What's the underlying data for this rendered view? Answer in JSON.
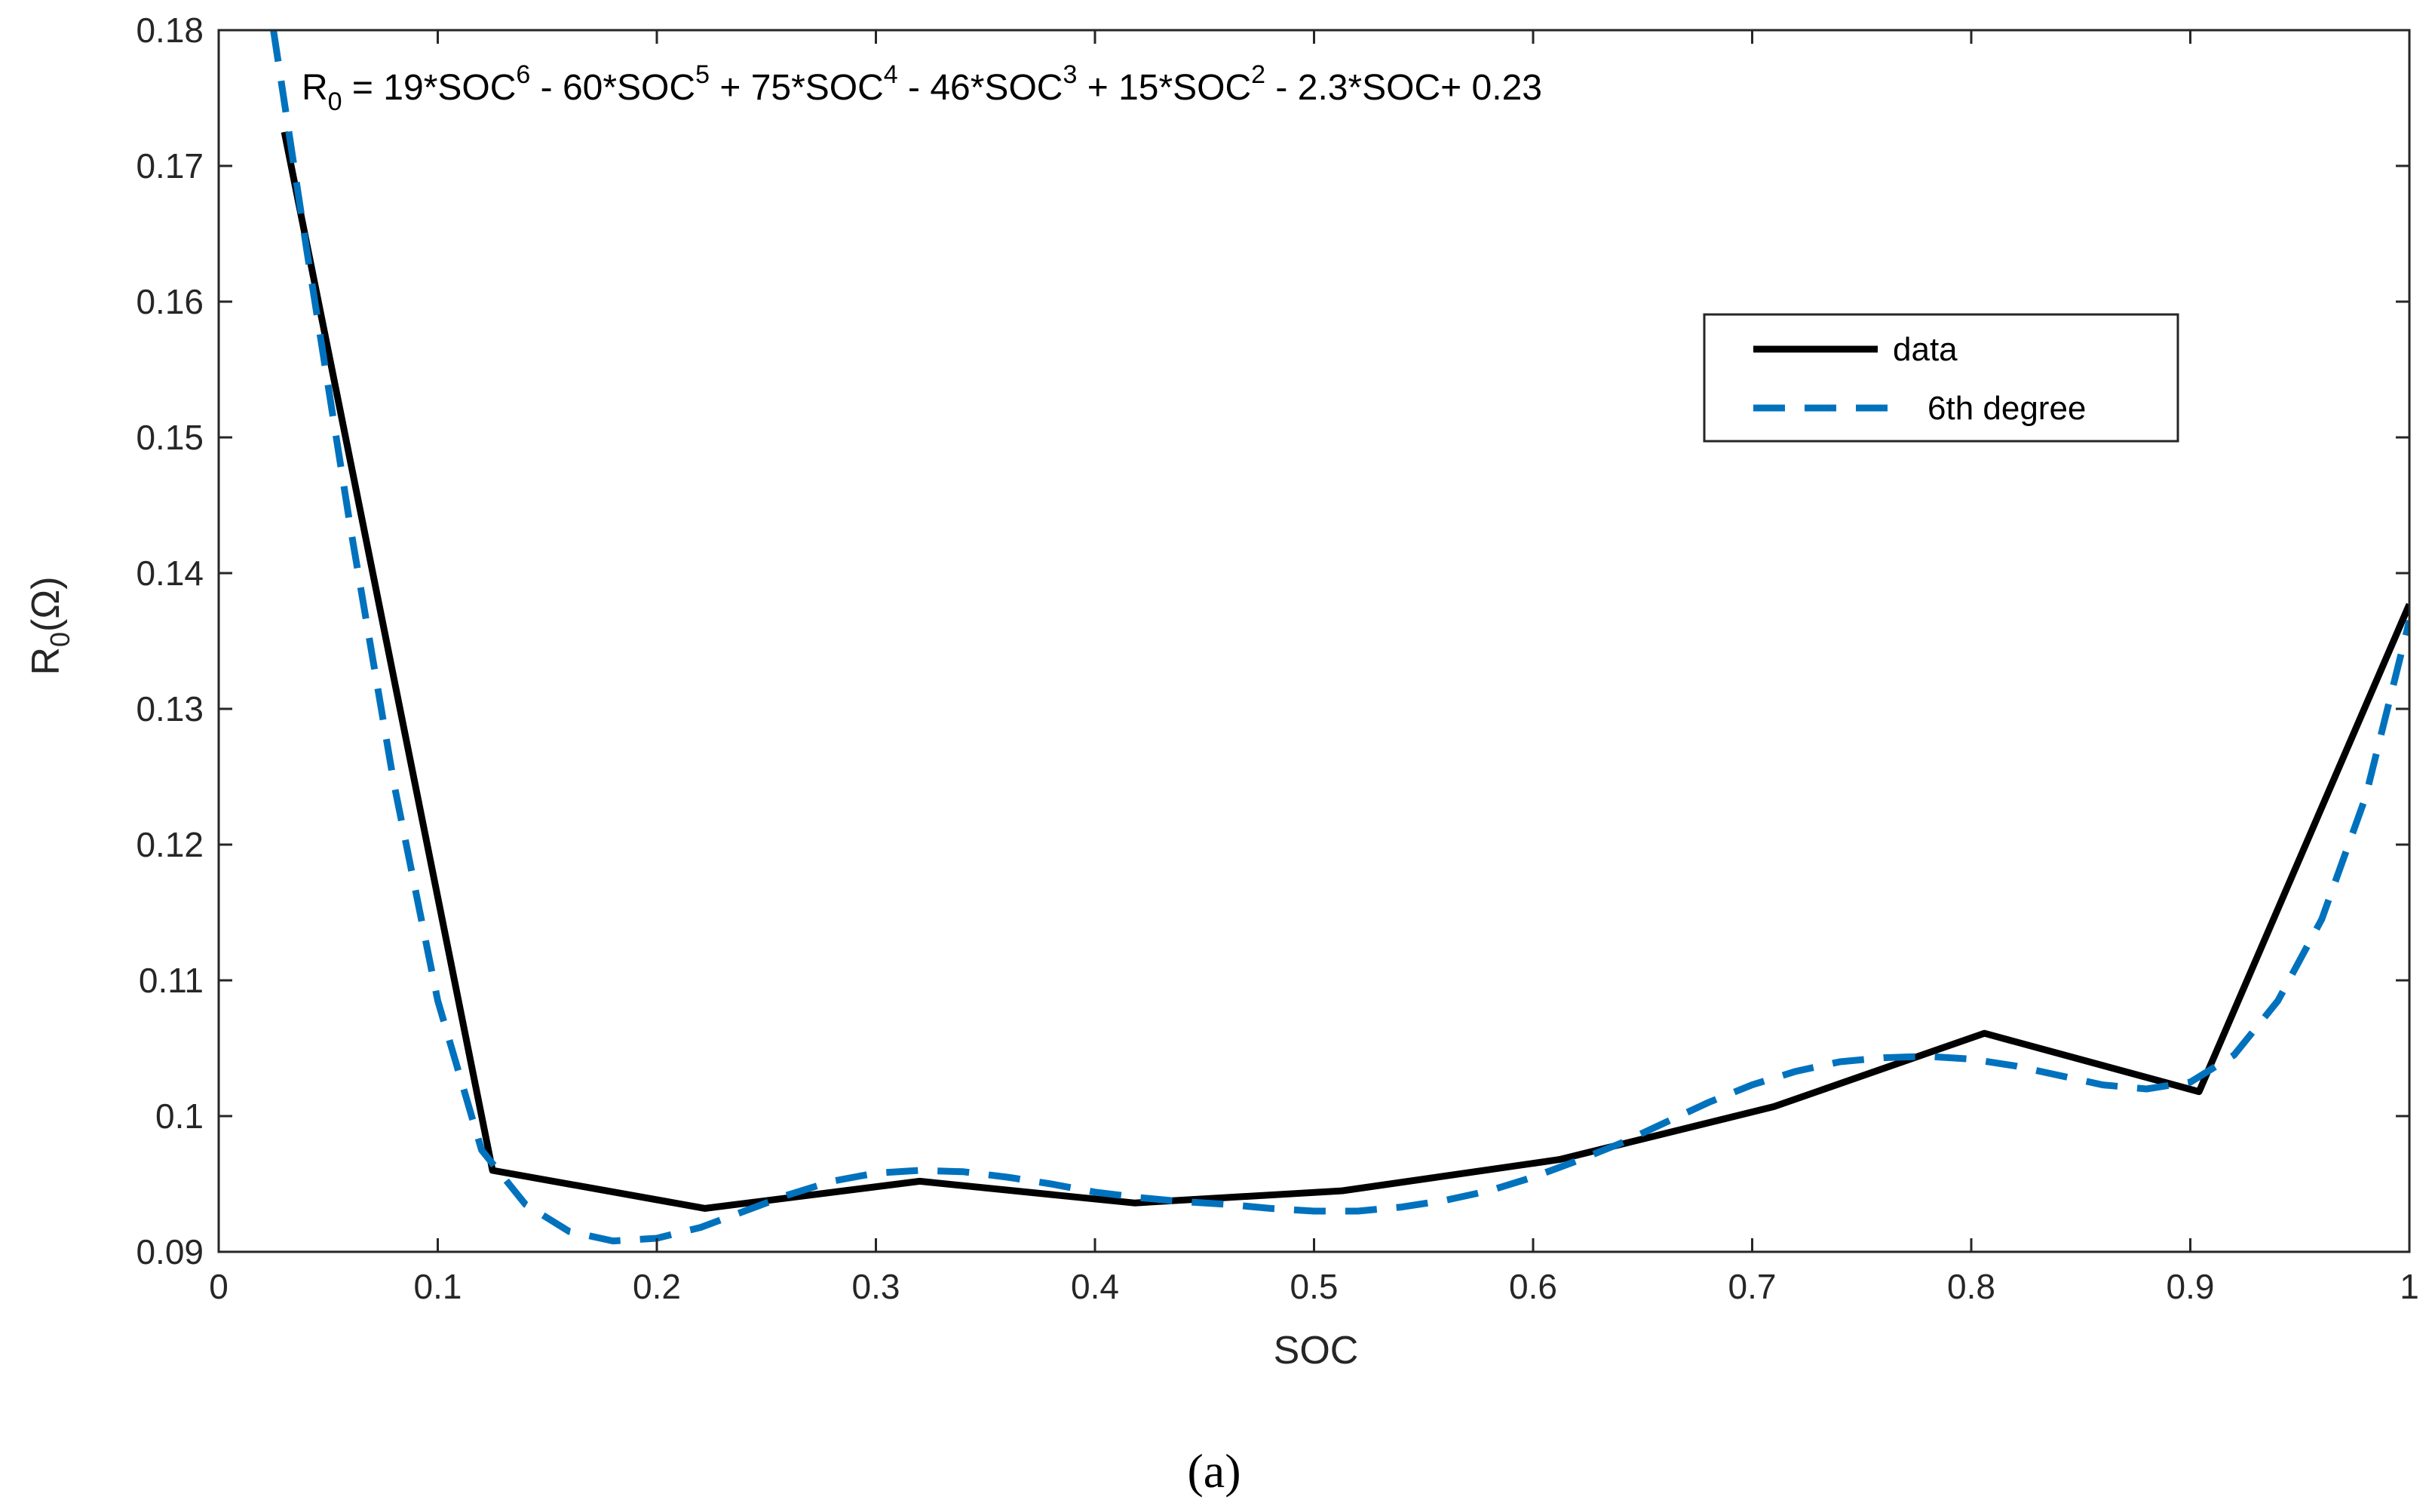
{
  "chart_data": {
    "type": "line",
    "xlabel": "SOC",
    "ylabel_main": "R",
    "ylabel_sub": "0",
    "ylabel_unit": "(Ω)",
    "xlim": [
      0,
      1
    ],
    "ylim": [
      0.09,
      0.18
    ],
    "xticks": [
      "0",
      "0.1",
      "0.2",
      "0.3",
      "0.4",
      "0.5",
      "0.6",
      "0.7",
      "0.8",
      "0.9",
      "1"
    ],
    "yticks": [
      "0.09",
      "0.1",
      "0.11",
      "0.12",
      "0.13",
      "0.14",
      "0.15",
      "0.16",
      "0.17",
      "0.18"
    ],
    "grid": false,
    "legend_position": "top-right",
    "annotation": {
      "r": "R",
      "r_sub": "0",
      "p1": " = 19*SOC",
      "e6": "6",
      "p2": " - 60*SOC",
      "e5": "5",
      "p3": " + 75*SOC",
      "e4": "4",
      "p4": " - 46*SOC",
      "e3": "3",
      "p5": " + 15*SOC",
      "e2": "2",
      "p6": " - 2.3*SOC+ 0.23"
    },
    "caption": "(a)",
    "series": [
      {
        "name": "data",
        "color": "#000000",
        "style": "solid",
        "x": [
          0.03,
          0.125,
          0.222,
          0.32,
          0.418,
          0.513,
          0.612,
          0.71,
          0.806,
          0.904,
          1.0
        ],
        "y": [
          0.1725,
          0.096,
          0.0932,
          0.0952,
          0.0936,
          0.0945,
          0.0968,
          0.1007,
          0.1061,
          0.1018,
          0.1377
        ]
      },
      {
        "name": "6th degree",
        "color": "#0072BD",
        "style": "dashed",
        "x": [
          0.025,
          0.04,
          0.06,
          0.08,
          0.1,
          0.12,
          0.14,
          0.16,
          0.18,
          0.2,
          0.22,
          0.24,
          0.26,
          0.28,
          0.3,
          0.32,
          0.34,
          0.36,
          0.38,
          0.4,
          0.42,
          0.44,
          0.46,
          0.48,
          0.5,
          0.52,
          0.54,
          0.56,
          0.58,
          0.6,
          0.62,
          0.64,
          0.66,
          0.68,
          0.7,
          0.72,
          0.74,
          0.76,
          0.78,
          0.8,
          0.82,
          0.84,
          0.86,
          0.88,
          0.9,
          0.92,
          0.94,
          0.96,
          0.98,
          1.0
        ],
        "y": [
          0.18,
          0.164,
          0.1435,
          0.1245,
          0.1085,
          0.0975,
          0.0935,
          0.0915,
          0.0908,
          0.091,
          0.0918,
          0.093,
          0.0942,
          0.0952,
          0.0958,
          0.096,
          0.0959,
          0.0955,
          0.095,
          0.0944,
          0.094,
          0.0937,
          0.0935,
          0.0932,
          0.093,
          0.093,
          0.0933,
          0.0938,
          0.0945,
          0.0955,
          0.0967,
          0.098,
          0.0995,
          0.101,
          0.1023,
          0.1033,
          0.104,
          0.1043,
          0.1044,
          0.1042,
          0.1037,
          0.103,
          0.1023,
          0.102,
          0.1025,
          0.1045,
          0.1085,
          0.1145,
          0.1235,
          0.1365
        ]
      }
    ]
  }
}
